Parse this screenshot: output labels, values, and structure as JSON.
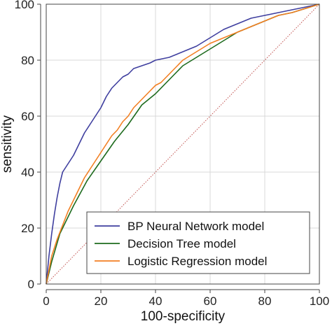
{
  "chart_data": {
    "type": "line",
    "title": "",
    "xlabel": "100-specificity",
    "ylabel": "sensitivity",
    "xlim": [
      0,
      100
    ],
    "ylim": [
      0,
      100
    ],
    "xticks": [
      0,
      20,
      40,
      60,
      80,
      100
    ],
    "yticks": [
      0,
      20,
      40,
      60,
      80,
      100
    ],
    "x_tick_labels": [
      "0",
      "20",
      "40",
      "60",
      "80",
      "100"
    ],
    "y_tick_labels": [
      "0",
      "20",
      "40",
      "60",
      "80",
      "100"
    ],
    "grid": true,
    "legend_position": "bottom-right",
    "reference_line": {
      "x": [
        0,
        100
      ],
      "y": [
        0,
        100
      ],
      "color": "#c0504d",
      "style": "dotted"
    },
    "series": [
      {
        "name": "BP Neural Network model",
        "color": "#3f3f9f",
        "x": [
          0,
          1,
          2,
          3,
          4,
          5,
          6,
          8,
          10,
          12,
          14,
          16,
          18,
          20,
          22,
          24,
          26,
          28,
          30,
          32,
          35,
          38,
          40,
          45,
          50,
          55,
          60,
          65,
          70,
          75,
          80,
          85,
          90,
          95,
          100
        ],
        "y": [
          0,
          10,
          18,
          25,
          31,
          36,
          40,
          43,
          46,
          50,
          54,
          57,
          60,
          63,
          67,
          70,
          72,
          74,
          75,
          77,
          78,
          79,
          80,
          81,
          83,
          85,
          88,
          91,
          93,
          95,
          96,
          97,
          98,
          99,
          100
        ]
      },
      {
        "name": "Decision Tree model",
        "color": "#1e6b1e",
        "x": [
          0,
          2,
          5,
          10,
          15,
          20,
          25,
          30,
          35,
          40,
          45,
          50,
          55,
          60,
          65,
          70,
          75,
          80,
          85,
          90,
          95,
          100
        ],
        "y": [
          0,
          8,
          18,
          28,
          37,
          44,
          51,
          57,
          64,
          68,
          73,
          78,
          81,
          84,
          87,
          90,
          92,
          94,
          96,
          97,
          98.5,
          100
        ]
      },
      {
        "name": "Logistic Regression model",
        "color": "#f27f22",
        "x": [
          0,
          1,
          2,
          4,
          6,
          8,
          10,
          12,
          14,
          16,
          18,
          20,
          22,
          24,
          26,
          28,
          30,
          32,
          34,
          36,
          38,
          40,
          42,
          44,
          46,
          48,
          50,
          55,
          60,
          65,
          70,
          75,
          80,
          85,
          90,
          95,
          100
        ],
        "y": [
          0,
          5,
          10,
          16,
          21,
          26,
          30,
          34,
          38,
          41,
          44,
          47,
          50,
          53,
          55,
          58,
          60,
          63,
          65,
          67,
          69,
          71,
          72,
          74,
          76,
          78,
          80,
          83,
          86,
          88,
          90,
          92,
          94,
          96,
          97,
          98.5,
          100
        ]
      }
    ]
  }
}
